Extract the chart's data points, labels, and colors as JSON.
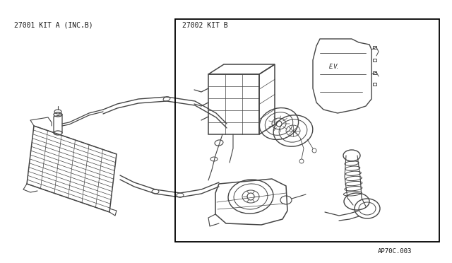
{
  "page_background": "#ffffff",
  "label_kit_a": "27001 KIT A (INC.B)",
  "label_kit_b": "27002 KIT B",
  "diagram_id": "AP70C.003",
  "border_color": "#000000",
  "line_color": "#444444",
  "text_color": "#111111",
  "fig_width": 6.4,
  "fig_height": 3.72,
  "dpi": 100,
  "label_fontsize": 7.0,
  "id_fontsize": 6.5
}
